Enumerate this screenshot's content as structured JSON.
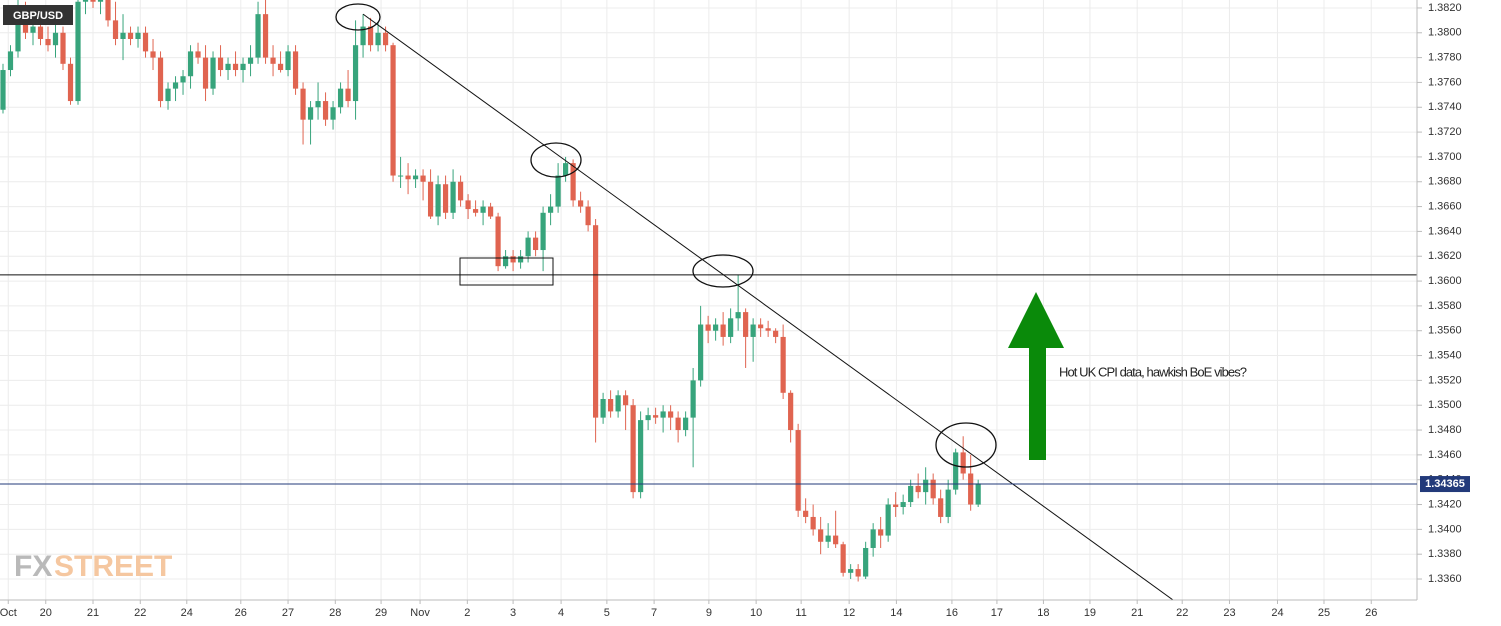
{
  "chart_data": {
    "type": "candlestick",
    "symbol": "GBP/USD",
    "annotation": "Hot UK CPI data,  hawkish BoE vibes?",
    "logo": [
      "FX",
      "STREET"
    ],
    "up_color": "#37a47c",
    "down_color": "#e06450",
    "grid": true,
    "current_price": 1.34365,
    "horizontal_level": 1.3605,
    "trendline": {
      "x": [
        48,
        156
      ],
      "y": [
        1.3815,
        1.3343
      ]
    },
    "ylim": [
      1.33431,
      1.38264
    ],
    "yticks": [
      {
        "value": 1.336,
        "label": "1.3360"
      },
      {
        "value": 1.338,
        "label": "1.3380"
      },
      {
        "value": 1.34,
        "label": "1.3400"
      },
      {
        "value": 1.342,
        "label": "1.3420"
      },
      {
        "value": 1.344,
        "label": "1.3440"
      },
      {
        "value": 1.346,
        "label": "1.3460"
      },
      {
        "value": 1.348,
        "label": "1.3480"
      },
      {
        "value": 1.35,
        "label": "1.3500"
      },
      {
        "value": 1.352,
        "label": "1.3520"
      },
      {
        "value": 1.354,
        "label": "1.3540"
      },
      {
        "value": 1.356,
        "label": "1.3560"
      },
      {
        "value": 1.358,
        "label": "1.3580"
      },
      {
        "value": 1.36,
        "label": "1.3600"
      },
      {
        "value": 1.362,
        "label": "1.3620"
      },
      {
        "value": 1.364,
        "label": "1.3640"
      },
      {
        "value": 1.366,
        "label": "1.3660"
      },
      {
        "value": 1.368,
        "label": "1.3680"
      },
      {
        "value": 1.37,
        "label": "1.3700"
      },
      {
        "value": 1.372,
        "label": "1.3720"
      },
      {
        "value": 1.374,
        "label": "1.3740"
      },
      {
        "value": 1.376,
        "label": "1.3760"
      },
      {
        "value": 1.378,
        "label": "1.3780"
      },
      {
        "value": 1.38,
        "label": "1.3800"
      },
      {
        "value": 1.382,
        "label": "1.3820"
      }
    ],
    "xlim": [
      -0.4,
      188.5
    ],
    "xticks": [
      {
        "value": 0.7,
        "label": "Oct"
      },
      {
        "value": 5.7,
        "label": "20"
      },
      {
        "value": 12,
        "label": "21"
      },
      {
        "value": 18.3,
        "label": "22"
      },
      {
        "value": 24.5,
        "label": "24"
      },
      {
        "value": 31.7,
        "label": "26"
      },
      {
        "value": 38,
        "label": "27"
      },
      {
        "value": 44.3,
        "label": "28"
      },
      {
        "value": 50.4,
        "label": "29"
      },
      {
        "value": 55.6,
        "label": "Nov"
      },
      {
        "value": 61.9,
        "label": "2"
      },
      {
        "value": 68,
        "label": "3"
      },
      {
        "value": 74.4,
        "label": "4"
      },
      {
        "value": 80.5,
        "label": "5"
      },
      {
        "value": 86.8,
        "label": "7"
      },
      {
        "value": 94.1,
        "label": "9"
      },
      {
        "value": 100.4,
        "label": "10"
      },
      {
        "value": 106.4,
        "label": "11"
      },
      {
        "value": 112.8,
        "label": "12"
      },
      {
        "value": 119.1,
        "label": "14"
      },
      {
        "value": 126.5,
        "label": "16"
      },
      {
        "value": 132.5,
        "label": "17"
      },
      {
        "value": 138.7,
        "label": "18"
      },
      {
        "value": 144.9,
        "label": "19"
      },
      {
        "value": 151.2,
        "label": "21"
      },
      {
        "value": 157.2,
        "label": "22"
      },
      {
        "value": 163.5,
        "label": "23"
      },
      {
        "value": 169.9,
        "label": "24"
      },
      {
        "value": 176.1,
        "label": "25"
      },
      {
        "value": 182.4,
        "label": "26"
      }
    ],
    "candles": [
      {
        "o": 1.3738,
        "h": 1.3775,
        "l": 1.3735,
        "c": 1.377
      },
      {
        "o": 1.377,
        "h": 1.379,
        "l": 1.3765,
        "c": 1.3785
      },
      {
        "o": 1.3785,
        "h": 1.383,
        "l": 1.378,
        "c": 1.3815
      },
      {
        "o": 1.3815,
        "h": 1.3825,
        "l": 1.3795,
        "c": 1.38
      },
      {
        "o": 1.38,
        "h": 1.3812,
        "l": 1.379,
        "c": 1.3805
      },
      {
        "o": 1.3805,
        "h": 1.381,
        "l": 1.379,
        "c": 1.3795
      },
      {
        "o": 1.3795,
        "h": 1.3805,
        "l": 1.3785,
        "c": 1.379
      },
      {
        "o": 1.379,
        "h": 1.3808,
        "l": 1.378,
        "c": 1.38
      },
      {
        "o": 1.38,
        "h": 1.3805,
        "l": 1.377,
        "c": 1.3775
      },
      {
        "o": 1.3775,
        "h": 1.378,
        "l": 1.3742,
        "c": 1.3745
      },
      {
        "o": 1.3745,
        "h": 1.383,
        "l": 1.3742,
        "c": 1.3825
      },
      {
        "o": 1.3825,
        "h": 1.384,
        "l": 1.3815,
        "c": 1.383
      },
      {
        "o": 1.383,
        "h": 1.384,
        "l": 1.382,
        "c": 1.3825
      },
      {
        "o": 1.3825,
        "h": 1.3835,
        "l": 1.3815,
        "c": 1.383
      },
      {
        "o": 1.383,
        "h": 1.3835,
        "l": 1.3805,
        "c": 1.381
      },
      {
        "o": 1.381,
        "h": 1.3825,
        "l": 1.379,
        "c": 1.3795
      },
      {
        "o": 1.3795,
        "h": 1.3815,
        "l": 1.3778,
        "c": 1.38
      },
      {
        "o": 1.38,
        "h": 1.3805,
        "l": 1.379,
        "c": 1.3795
      },
      {
        "o": 1.3795,
        "h": 1.3805,
        "l": 1.3788,
        "c": 1.38
      },
      {
        "o": 1.38,
        "h": 1.3805,
        "l": 1.378,
        "c": 1.3785
      },
      {
        "o": 1.3785,
        "h": 1.3795,
        "l": 1.377,
        "c": 1.378
      },
      {
        "o": 1.378,
        "h": 1.3785,
        "l": 1.374,
        "c": 1.3745
      },
      {
        "o": 1.3745,
        "h": 1.376,
        "l": 1.3738,
        "c": 1.3755
      },
      {
        "o": 1.3755,
        "h": 1.3765,
        "l": 1.3745,
        "c": 1.376
      },
      {
        "o": 1.376,
        "h": 1.377,
        "l": 1.375,
        "c": 1.3765
      },
      {
        "o": 1.3765,
        "h": 1.379,
        "l": 1.3755,
        "c": 1.3785
      },
      {
        "o": 1.3785,
        "h": 1.3792,
        "l": 1.3775,
        "c": 1.378
      },
      {
        "o": 1.378,
        "h": 1.379,
        "l": 1.3745,
        "c": 1.3755
      },
      {
        "o": 1.3755,
        "h": 1.3785,
        "l": 1.375,
        "c": 1.378
      },
      {
        "o": 1.378,
        "h": 1.379,
        "l": 1.3765,
        "c": 1.377
      },
      {
        "o": 1.377,
        "h": 1.378,
        "l": 1.3762,
        "c": 1.3775
      },
      {
        "o": 1.3775,
        "h": 1.3785,
        "l": 1.3765,
        "c": 1.377
      },
      {
        "o": 1.377,
        "h": 1.378,
        "l": 1.376,
        "c": 1.3775
      },
      {
        "o": 1.3775,
        "h": 1.379,
        "l": 1.3765,
        "c": 1.378
      },
      {
        "o": 1.378,
        "h": 1.3825,
        "l": 1.3775,
        "c": 1.3815
      },
      {
        "o": 1.3815,
        "h": 1.3835,
        "l": 1.3775,
        "c": 1.378
      },
      {
        "o": 1.378,
        "h": 1.379,
        "l": 1.3765,
        "c": 1.3775
      },
      {
        "o": 1.3775,
        "h": 1.3785,
        "l": 1.3768,
        "c": 1.377
      },
      {
        "o": 1.377,
        "h": 1.379,
        "l": 1.3765,
        "c": 1.3785
      },
      {
        "o": 1.3785,
        "h": 1.379,
        "l": 1.375,
        "c": 1.3755
      },
      {
        "o": 1.3755,
        "h": 1.376,
        "l": 1.371,
        "c": 1.373
      },
      {
        "o": 1.373,
        "h": 1.3745,
        "l": 1.371,
        "c": 1.374
      },
      {
        "o": 1.374,
        "h": 1.376,
        "l": 1.373,
        "c": 1.3745
      },
      {
        "o": 1.3745,
        "h": 1.3752,
        "l": 1.3725,
        "c": 1.373
      },
      {
        "o": 1.373,
        "h": 1.3745,
        "l": 1.3722,
        "c": 1.374
      },
      {
        "o": 1.374,
        "h": 1.376,
        "l": 1.3735,
        "c": 1.3755
      },
      {
        "o": 1.3755,
        "h": 1.377,
        "l": 1.374,
        "c": 1.3745
      },
      {
        "o": 1.3745,
        "h": 1.381,
        "l": 1.373,
        "c": 1.379
      },
      {
        "o": 1.379,
        "h": 1.3815,
        "l": 1.378,
        "c": 1.3805
      },
      {
        "o": 1.3805,
        "h": 1.3812,
        "l": 1.3785,
        "c": 1.379
      },
      {
        "o": 1.379,
        "h": 1.3808,
        "l": 1.3785,
        "c": 1.38
      },
      {
        "o": 1.38,
        "h": 1.3805,
        "l": 1.3785,
        "c": 1.379
      },
      {
        "o": 1.379,
        "h": 1.3792,
        "l": 1.368,
        "c": 1.3685
      },
      {
        "o": 1.3685,
        "h": 1.37,
        "l": 1.3675,
        "c": 1.3685
      },
      {
        "o": 1.3685,
        "h": 1.3695,
        "l": 1.367,
        "c": 1.3682
      },
      {
        "o": 1.3682,
        "h": 1.369,
        "l": 1.3675,
        "c": 1.3685
      },
      {
        "o": 1.3685,
        "h": 1.369,
        "l": 1.3665,
        "c": 1.368
      },
      {
        "o": 1.368,
        "h": 1.369,
        "l": 1.365,
        "c": 1.3652
      },
      {
        "o": 1.3652,
        "h": 1.3685,
        "l": 1.3645,
        "c": 1.3678
      },
      {
        "o": 1.3678,
        "h": 1.3685,
        "l": 1.365,
        "c": 1.3655
      },
      {
        "o": 1.3655,
        "h": 1.369,
        "l": 1.365,
        "c": 1.368
      },
      {
        "o": 1.368,
        "h": 1.3685,
        "l": 1.366,
        "c": 1.3665
      },
      {
        "o": 1.3665,
        "h": 1.367,
        "l": 1.365,
        "c": 1.3658
      },
      {
        "o": 1.3658,
        "h": 1.3665,
        "l": 1.3652,
        "c": 1.3655
      },
      {
        "o": 1.3655,
        "h": 1.3665,
        "l": 1.3645,
        "c": 1.366
      },
      {
        "o": 1.366,
        "h": 1.3663,
        "l": 1.365,
        "c": 1.3652
      },
      {
        "o": 1.3652,
        "h": 1.3655,
        "l": 1.3608,
        "c": 1.3612
      },
      {
        "o": 1.3612,
        "h": 1.3625,
        "l": 1.361,
        "c": 1.362
      },
      {
        "o": 1.362,
        "h": 1.3625,
        "l": 1.3608,
        "c": 1.3615
      },
      {
        "o": 1.3615,
        "h": 1.3625,
        "l": 1.361,
        "c": 1.362
      },
      {
        "o": 1.362,
        "h": 1.364,
        "l": 1.3615,
        "c": 1.3635
      },
      {
        "o": 1.3635,
        "h": 1.364,
        "l": 1.362,
        "c": 1.3625
      },
      {
        "o": 1.3625,
        "h": 1.366,
        "l": 1.3608,
        "c": 1.3655
      },
      {
        "o": 1.3655,
        "h": 1.367,
        "l": 1.3645,
        "c": 1.366
      },
      {
        "o": 1.366,
        "h": 1.3695,
        "l": 1.3655,
        "c": 1.3685
      },
      {
        "o": 1.3685,
        "h": 1.37,
        "l": 1.368,
        "c": 1.3695
      },
      {
        "o": 1.3695,
        "h": 1.3698,
        "l": 1.366,
        "c": 1.3665
      },
      {
        "o": 1.3665,
        "h": 1.3672,
        "l": 1.3655,
        "c": 1.366
      },
      {
        "o": 1.366,
        "h": 1.3665,
        "l": 1.364,
        "c": 1.3645
      },
      {
        "o": 1.3645,
        "h": 1.365,
        "l": 1.347,
        "c": 1.349
      },
      {
        "o": 1.349,
        "h": 1.351,
        "l": 1.3485,
        "c": 1.3505
      },
      {
        "o": 1.3505,
        "h": 1.3512,
        "l": 1.349,
        "c": 1.3495
      },
      {
        "o": 1.3495,
        "h": 1.3512,
        "l": 1.349,
        "c": 1.3508
      },
      {
        "o": 1.3508,
        "h": 1.3512,
        "l": 1.348,
        "c": 1.35
      },
      {
        "o": 1.35,
        "h": 1.3505,
        "l": 1.3425,
        "c": 1.343
      },
      {
        "o": 1.343,
        "h": 1.3495,
        "l": 1.3425,
        "c": 1.3488
      },
      {
        "o": 1.3488,
        "h": 1.3498,
        "l": 1.348,
        "c": 1.3492
      },
      {
        "o": 1.3492,
        "h": 1.3498,
        "l": 1.3485,
        "c": 1.349
      },
      {
        "o": 1.349,
        "h": 1.35,
        "l": 1.3478,
        "c": 1.3495
      },
      {
        "o": 1.3495,
        "h": 1.35,
        "l": 1.348,
        "c": 1.349
      },
      {
        "o": 1.349,
        "h": 1.3495,
        "l": 1.347,
        "c": 1.348
      },
      {
        "o": 1.348,
        "h": 1.3495,
        "l": 1.3475,
        "c": 1.349
      },
      {
        "o": 1.349,
        "h": 1.353,
        "l": 1.345,
        "c": 1.352
      },
      {
        "o": 1.352,
        "h": 1.358,
        "l": 1.3515,
        "c": 1.3565
      },
      {
        "o": 1.3565,
        "h": 1.3572,
        "l": 1.355,
        "c": 1.356
      },
      {
        "o": 1.356,
        "h": 1.357,
        "l": 1.3552,
        "c": 1.3565
      },
      {
        "o": 1.3565,
        "h": 1.3575,
        "l": 1.3548,
        "c": 1.3555
      },
      {
        "o": 1.3555,
        "h": 1.3578,
        "l": 1.355,
        "c": 1.357
      },
      {
        "o": 1.357,
        "h": 1.3605,
        "l": 1.356,
        "c": 1.3575
      },
      {
        "o": 1.3575,
        "h": 1.3578,
        "l": 1.353,
        "c": 1.3555
      },
      {
        "o": 1.3555,
        "h": 1.357,
        "l": 1.3535,
        "c": 1.3565
      },
      {
        "o": 1.3565,
        "h": 1.357,
        "l": 1.3555,
        "c": 1.3562
      },
      {
        "o": 1.3562,
        "h": 1.3568,
        "l": 1.3555,
        "c": 1.356
      },
      {
        "o": 1.356,
        "h": 1.3562,
        "l": 1.355,
        "c": 1.3555
      },
      {
        "o": 1.3555,
        "h": 1.3565,
        "l": 1.3505,
        "c": 1.351
      },
      {
        "o": 1.351,
        "h": 1.3512,
        "l": 1.347,
        "c": 1.348
      },
      {
        "o": 1.348,
        "h": 1.3485,
        "l": 1.341,
        "c": 1.3415
      },
      {
        "o": 1.3415,
        "h": 1.3425,
        "l": 1.3405,
        "c": 1.341
      },
      {
        "o": 1.341,
        "h": 1.342,
        "l": 1.3395,
        "c": 1.34
      },
      {
        "o": 1.34,
        "h": 1.341,
        "l": 1.338,
        "c": 1.339
      },
      {
        "o": 1.339,
        "h": 1.3405,
        "l": 1.3385,
        "c": 1.3395
      },
      {
        "o": 1.3395,
        "h": 1.3415,
        "l": 1.3385,
        "c": 1.3388
      },
      {
        "o": 1.3388,
        "h": 1.339,
        "l": 1.3362,
        "c": 1.3365
      },
      {
        "o": 1.3365,
        "h": 1.3372,
        "l": 1.336,
        "c": 1.3368
      },
      {
        "o": 1.3368,
        "h": 1.3372,
        "l": 1.3358,
        "c": 1.3362
      },
      {
        "o": 1.3362,
        "h": 1.339,
        "l": 1.336,
        "c": 1.3385
      },
      {
        "o": 1.3385,
        "h": 1.3405,
        "l": 1.3378,
        "c": 1.34
      },
      {
        "o": 1.34,
        "h": 1.341,
        "l": 1.3385,
        "c": 1.3395
      },
      {
        "o": 1.3395,
        "h": 1.3425,
        "l": 1.339,
        "c": 1.342
      },
      {
        "o": 1.342,
        "h": 1.343,
        "l": 1.341,
        "c": 1.3418
      },
      {
        "o": 1.3418,
        "h": 1.3428,
        "l": 1.3412,
        "c": 1.3422
      },
      {
        "o": 1.3422,
        "h": 1.344,
        "l": 1.3418,
        "c": 1.3435
      },
      {
        "o": 1.3435,
        "h": 1.3445,
        "l": 1.3425,
        "c": 1.343
      },
      {
        "o": 1.343,
        "h": 1.345,
        "l": 1.342,
        "c": 1.344
      },
      {
        "o": 1.344,
        "h": 1.3445,
        "l": 1.342,
        "c": 1.3425
      },
      {
        "o": 1.3425,
        "h": 1.3432,
        "l": 1.3405,
        "c": 1.341
      },
      {
        "o": 1.341,
        "h": 1.344,
        "l": 1.3405,
        "c": 1.3432
      },
      {
        "o": 1.3432,
        "h": 1.3465,
        "l": 1.3428,
        "c": 1.3462
      },
      {
        "o": 1.3462,
        "h": 1.3475,
        "l": 1.344,
        "c": 1.3445
      },
      {
        "o": 1.3445,
        "h": 1.346,
        "l": 1.3415,
        "c": 1.342
      },
      {
        "o": 1.342,
        "h": 1.344,
        "l": 1.3418,
        "c": 1.3437
      }
    ]
  }
}
